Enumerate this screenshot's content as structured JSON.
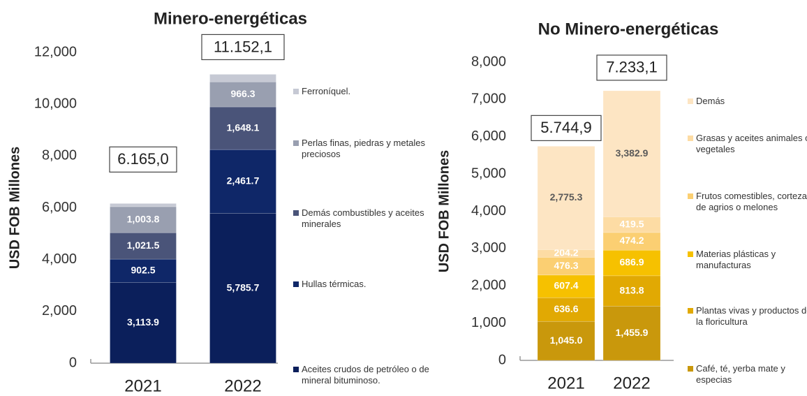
{
  "chart_data": [
    {
      "type": "stacked_bar",
      "title": "Minero-energéticas",
      "y_label": "USD FOB Millones",
      "categories": [
        "2021",
        "2022"
      ],
      "ylim": [
        0,
        12000
      ],
      "yticks": [
        0,
        {
          "value": 2000,
          "label": "2,000"
        },
        {
          "value": 4000,
          "label": "4,000"
        },
        {
          "value": 6000,
          "label": "6,000"
        },
        {
          "value": 8000,
          "label": "8,000"
        },
        {
          "value": 10000,
          "label": "10,000"
        },
        {
          "value": 12000,
          "label": "12,000"
        }
      ],
      "series": [
        {
          "name": "Aceites crudos de petróleo o de mineral bituminoso.",
          "color": "#0b1f5b",
          "label_color": "#ffffff",
          "values": [
            3113.9,
            5785.7
          ],
          "value_labels": [
            "3,113.9",
            "5,785.7"
          ]
        },
        {
          "name": "Hullas térmicas.",
          "color": "#0f2768",
          "label_color": "#ffffff",
          "values": [
            902.5,
            2461.7
          ],
          "value_labels": [
            "902.5",
            "2,461.7"
          ]
        },
        {
          "name": "Demás combustibles y aceites minerales",
          "color": "#4a5479",
          "label_color": "#ffffff",
          "values": [
            1021.5,
            1648.1
          ],
          "value_labels": [
            "1,021.5",
            "1,648.1"
          ]
        },
        {
          "name": "Perlas finas, piedras y metales preciosos",
          "color": "#999fb0",
          "label_color": "#ffffff",
          "values": [
            1003.8,
            966.3
          ],
          "value_labels": [
            "1,003.8",
            "966.3"
          ]
        },
        {
          "name": "Ferroníquel.",
          "color": "#c6c9d4",
          "label_color": "#ffffff",
          "values": [
            123.3,
            290.3
          ]
        }
      ],
      "totals": {
        "values": [
          6165.0,
          11152.1
        ],
        "value_labels": [
          "6.165,0",
          "11.152,1"
        ]
      }
    },
    {
      "type": "stacked_bar",
      "title": "No Minero-energéticas",
      "y_label": "USD FOB Millones",
      "categories": [
        "2021",
        "2022"
      ],
      "ylim": [
        0,
        8000
      ],
      "yticks": [
        0,
        {
          "value": 1000,
          "label": "1,000"
        },
        {
          "value": 2000,
          "label": "2,000"
        },
        {
          "value": 3000,
          "label": "3,000"
        },
        {
          "value": 4000,
          "label": "4,000"
        },
        {
          "value": 5000,
          "label": "5,000"
        },
        {
          "value": 6000,
          "label": "6,000"
        },
        {
          "value": 7000,
          "label": "7,000"
        },
        {
          "value": 8000,
          "label": "8,000"
        }
      ],
      "series": [
        {
          "name": "Café, té, yerba mate y especias",
          "color": "#c9980c",
          "label_color": "#ffffff",
          "values": [
            1045.0,
            1455.9
          ],
          "value_labels": [
            "1,045.0",
            "1,455.9"
          ]
        },
        {
          "name": "Plantas vivas y productos de la floricultura",
          "color": "#e1a903",
          "label_color": "#ffffff",
          "values": [
            636.6,
            813.8
          ],
          "value_labels": [
            "636.6",
            "813.8"
          ]
        },
        {
          "name": "Materias plásticas y manufacturas",
          "color": "#f6c100",
          "label_color": "#ffffff",
          "values": [
            607.4,
            686.9
          ],
          "value_labels": [
            "607.4",
            "686.9"
          ]
        },
        {
          "name": "Frutos comestibles, cortezas de agrios o melones",
          "color": "#fbcf72",
          "label_color": "#ffffff",
          "values": [
            476.3,
            474.2
          ],
          "value_labels": [
            "476.3",
            "474.2"
          ]
        },
        {
          "name": "Grasas y aceites animales o vegetales",
          "color": "#fddca4",
          "label_color": "#ffffff",
          "values": [
            204.2,
            419.5
          ],
          "value_labels": [
            "204.2",
            "419.5"
          ]
        },
        {
          "name": "Demás",
          "color": "#fde5c3",
          "label_color": "#595959",
          "values": [
            2775.3,
            3382.9
          ],
          "value_labels": [
            "2,775.3",
            "3,382.9"
          ]
        }
      ],
      "totals": {
        "values": [
          5744.9,
          7233.1
        ],
        "value_labels": [
          "5.744,9",
          "7.233,1"
        ]
      }
    }
  ]
}
